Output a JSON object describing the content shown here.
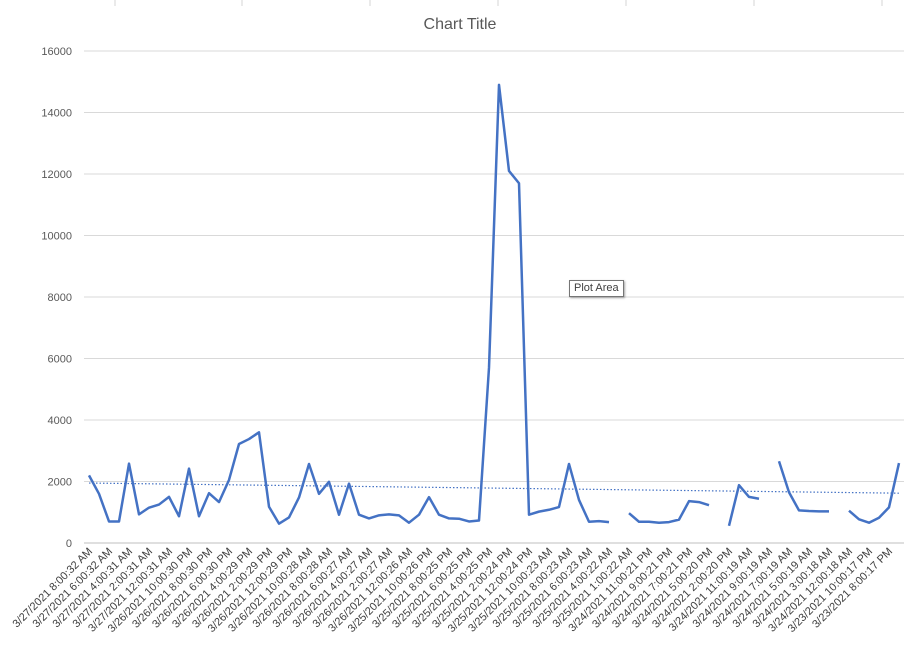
{
  "chart_data": {
    "type": "line",
    "title": "Chart Title",
    "ylim": [
      0,
      16000
    ],
    "yticks": [
      0,
      2000,
      4000,
      6000,
      8000,
      10000,
      12000,
      14000,
      16000
    ],
    "grid": true,
    "trendline": {
      "style": "dotted",
      "start": 1950,
      "end": 1620
    },
    "xlabels": [
      "3/27/2021 8:00:32 AM",
      "3/27/2021 6:00:32 AM",
      "3/27/2021 4:00:31 AM",
      "3/27/2021 2:00:31 AM",
      "3/27/2021 12:00:31 AM",
      "3/26/2021 10:00:30 PM",
      "3/26/2021 8:00:30 PM",
      "3/26/2021 6:00:30 PM",
      "3/26/2021 4:00:29 PM",
      "3/26/2021 2:00:29 PM",
      "3/26/2021 12:00:29 PM",
      "3/26/2021 10:00:28 AM",
      "3/26/2021 8:00:28 AM",
      "3/26/2021 6:00:27 AM",
      "3/26/2021 4:00:27 AM",
      "3/26/2021 2:00:27 AM",
      "3/26/2021 12:00:26 AM",
      "3/25/2021 10:00:26 PM",
      "3/25/2021 8:00:25 PM",
      "3/25/2021 6:00:25 PM",
      "3/25/2021 4:00:25 PM",
      "3/25/2021 2:00:24 PM",
      "3/25/2021 12:00:24 PM",
      "3/25/2021 10:00:23 AM",
      "3/25/2021 8:00:23 AM",
      "3/25/2021 6:00:23 AM",
      "3/25/2021 4:00:22 AM",
      "3/25/2021 1:00:22 AM",
      "3/24/2021 11:00:21 PM",
      "3/24/2021 9:00:21 PM",
      "3/24/2021 7:00:21 PM",
      "3/24/2021 5:00:20 PM",
      "3/24/2021 2:00:20 PM",
      "3/24/2021 11:00:19 AM",
      "3/24/2021 9:00:19 AM",
      "3/24/2021 7:00:19 AM",
      "3/24/2021 5:00:19 AM",
      "3/24/2021 3:00:18 AM",
      "3/24/2021 12:00:18 AM",
      "3/23/2021 10:00:17 PM",
      "3/23/2021 8:00:17 PM"
    ],
    "series": [
      {
        "color": "#4472C4",
        "values": [
          2200,
          1600,
          700,
          700,
          2580,
          930,
          1150,
          1250,
          1500,
          870,
          2420,
          870,
          1620,
          1330,
          2050,
          3220,
          3380,
          3600,
          1180,
          630,
          830,
          1480,
          2570,
          1600,
          1990,
          920,
          1930,
          920,
          800,
          900,
          930,
          900,
          660,
          920,
          1490,
          920,
          800,
          790,
          700,
          730,
          5700,
          14900,
          12100,
          11700,
          920,
          1020,
          1080,
          1170,
          2570,
          1400,
          690,
          710,
          680,
          null,
          970,
          690,
          690,
          660,
          680,
          760,
          1360,
          1330,
          1230,
          null,
          560,
          1880,
          1500,
          1440,
          null,
          2660,
          1650,
          1060,
          1040,
          1030,
          1030,
          null,
          1050,
          770,
          660,
          820,
          1160,
          2600
        ]
      }
    ]
  },
  "tooltip": {
    "text": "Plot Area"
  },
  "colors": {
    "line": "#4472C4",
    "grid": "#D9D9D9",
    "trend": "#4472C4"
  }
}
